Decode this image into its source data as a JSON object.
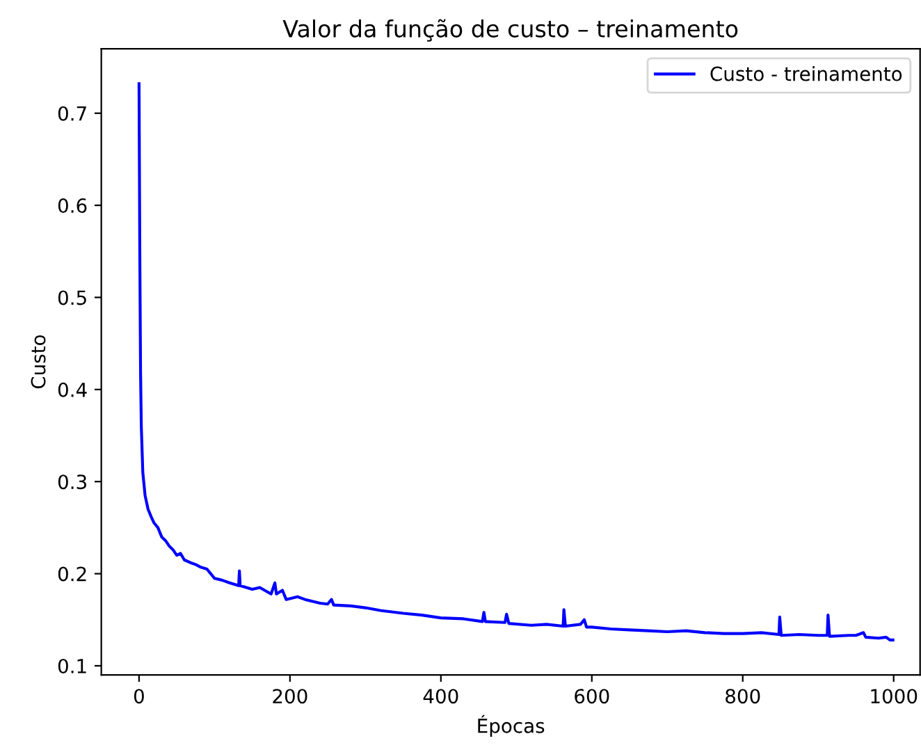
{
  "chart_data": {
    "type": "line",
    "title": "Valor da função de custo – treinamento",
    "xlabel": "Épocas",
    "ylabel": "Custo",
    "xlim": [
      -50,
      1035
    ],
    "xticks": [
      0,
      200,
      400,
      600,
      800,
      1000
    ],
    "ylim": [
      0.09,
      0.77
    ],
    "yticks": [
      0.1,
      0.2,
      0.3,
      0.4,
      0.5,
      0.6,
      0.7
    ],
    "grid": false,
    "legend": "top right",
    "marker": "none",
    "line_style": "solid",
    "series": [
      {
        "name": "Custo - treinamento",
        "color": "#0000ff",
        "x": [
          0,
          1,
          2,
          3,
          5,
          8,
          12,
          16,
          20,
          25,
          30,
          35,
          40,
          45,
          50,
          55,
          60,
          68,
          75,
          82,
          90,
          95,
          100,
          110,
          120,
          132,
          133,
          134,
          150,
          160,
          175,
          180,
          182,
          190,
          195,
          210,
          220,
          240,
          250,
          255,
          258,
          280,
          300,
          320,
          350,
          375,
          400,
          430,
          455,
          457,
          459,
          485,
          487,
          490,
          520,
          540,
          562,
          563,
          565,
          585,
          590,
          593,
          600,
          625,
          650,
          675,
          700,
          725,
          750,
          775,
          800,
          825,
          848,
          849,
          851,
          875,
          900,
          912,
          913,
          915,
          940,
          950,
          960,
          963,
          980,
          990,
          995,
          999
        ],
        "values": [
          0.732,
          0.55,
          0.42,
          0.36,
          0.31,
          0.285,
          0.27,
          0.262,
          0.255,
          0.25,
          0.24,
          0.236,
          0.23,
          0.226,
          0.22,
          0.222,
          0.215,
          0.212,
          0.21,
          0.207,
          0.205,
          0.2,
          0.195,
          0.193,
          0.19,
          0.187,
          0.203,
          0.187,
          0.183,
          0.185,
          0.178,
          0.19,
          0.178,
          0.182,
          0.172,
          0.175,
          0.172,
          0.168,
          0.167,
          0.172,
          0.166,
          0.165,
          0.163,
          0.16,
          0.157,
          0.155,
          0.152,
          0.151,
          0.148,
          0.158,
          0.148,
          0.147,
          0.156,
          0.146,
          0.144,
          0.145,
          0.143,
          0.161,
          0.143,
          0.145,
          0.15,
          0.142,
          0.142,
          0.14,
          0.139,
          0.138,
          0.137,
          0.138,
          0.136,
          0.135,
          0.135,
          0.136,
          0.134,
          0.153,
          0.133,
          0.134,
          0.133,
          0.133,
          0.155,
          0.132,
          0.133,
          0.133,
          0.136,
          0.131,
          0.13,
          0.131,
          0.128,
          0.128
        ]
      }
    ]
  }
}
